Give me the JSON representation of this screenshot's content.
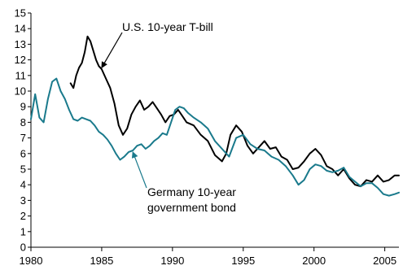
{
  "chart_data": {
    "type": "line",
    "title": "",
    "xlabel": "",
    "ylabel": "",
    "xlim": [
      1980,
      2006
    ],
    "ylim": [
      0,
      15
    ],
    "x_ticks": [
      1980,
      1985,
      1990,
      1995,
      2000,
      2005
    ],
    "x_tick_labels": [
      "1980",
      "1985",
      "1990",
      "1995",
      "2000",
      "2005"
    ],
    "y_ticks": [
      0,
      1,
      2,
      3,
      4,
      5,
      6,
      7,
      8,
      9,
      10,
      11,
      12,
      13,
      14,
      15
    ],
    "y_tick_labels": [
      "0",
      "1",
      "2",
      "3",
      "4",
      "5",
      "6",
      "7",
      "8",
      "9",
      "10",
      "11",
      "12",
      "13",
      "14",
      "15"
    ],
    "grid": false,
    "colors": {
      "us": "#000000",
      "germany": "#1a7a8c"
    },
    "series": [
      {
        "key": "us",
        "x": [
          1982.8,
          1983.0,
          1983.2,
          1983.4,
          1983.6,
          1983.8,
          1984.0,
          1984.2,
          1984.4,
          1984.6,
          1984.8,
          1985.0,
          1985.3,
          1985.6,
          1985.9,
          1986.2,
          1986.5,
          1986.8,
          1987.1,
          1987.4,
          1987.7,
          1988.0,
          1988.3,
          1988.6,
          1988.9,
          1989.2,
          1989.5,
          1989.8,
          1990.1,
          1990.4,
          1990.7,
          1991.0,
          1991.5,
          1992.0,
          1992.5,
          1993.0,
          1993.5,
          1993.8,
          1994.1,
          1994.5,
          1994.9,
          1995.3,
          1995.7,
          1996.1,
          1996.5,
          1996.9,
          1997.3,
          1997.7,
          1998.1,
          1998.5,
          1998.9,
          1999.3,
          1999.7,
          2000.1,
          2000.5,
          2000.9,
          2001.3,
          2001.7,
          2002.1,
          2002.5,
          2002.9,
          2003.3,
          2003.7,
          2004.1,
          2004.5,
          2004.9,
          2005.3,
          2005.7,
          2006.0
        ],
        "y": [
          10.5,
          10.2,
          11.0,
          11.5,
          11.8,
          12.5,
          13.5,
          13.2,
          12.6,
          12.0,
          11.6,
          11.4,
          10.8,
          10.2,
          9.2,
          7.8,
          7.2,
          7.6,
          8.5,
          9.0,
          9.4,
          8.8,
          9.0,
          9.3,
          8.9,
          8.5,
          8.0,
          8.4,
          8.5,
          8.8,
          8.4,
          8.0,
          7.8,
          7.2,
          6.8,
          5.9,
          5.5,
          6.0,
          7.2,
          7.8,
          7.4,
          6.5,
          6.0,
          6.4,
          6.8,
          6.3,
          6.4,
          5.8,
          5.6,
          5.0,
          5.1,
          5.5,
          6.0,
          6.3,
          5.9,
          5.2,
          5.0,
          4.6,
          5.0,
          4.4,
          4.0,
          3.9,
          4.3,
          4.2,
          4.6,
          4.2,
          4.3,
          4.6,
          4.6
        ]
      },
      {
        "key": "germany",
        "x": [
          1980.0,
          1980.3,
          1980.6,
          1980.9,
          1981.2,
          1981.5,
          1981.8,
          1982.1,
          1982.4,
          1982.7,
          1983.0,
          1983.3,
          1983.6,
          1983.9,
          1984.2,
          1984.5,
          1984.8,
          1985.1,
          1985.4,
          1985.7,
          1986.0,
          1986.3,
          1986.6,
          1986.9,
          1987.2,
          1987.5,
          1987.8,
          1988.1,
          1988.4,
          1988.7,
          1989.0,
          1989.3,
          1989.6,
          1989.9,
          1990.2,
          1990.5,
          1990.8,
          1991.1,
          1991.5,
          1992.0,
          1992.5,
          1993.0,
          1993.5,
          1994.0,
          1994.5,
          1995.0,
          1995.5,
          1996.0,
          1996.5,
          1997.0,
          1997.5,
          1998.0,
          1998.5,
          1998.9,
          1999.3,
          1999.7,
          2000.1,
          2000.5,
          2000.9,
          2001.3,
          2001.7,
          2002.1,
          2002.5,
          2002.9,
          2003.3,
          2003.7,
          2004.1,
          2004.5,
          2004.9,
          2005.3,
          2005.7,
          2006.0
        ],
        "y": [
          8.2,
          9.8,
          8.3,
          8.0,
          9.5,
          10.6,
          10.8,
          10.0,
          9.5,
          8.8,
          8.2,
          8.1,
          8.3,
          8.2,
          8.1,
          7.8,
          7.4,
          7.2,
          6.9,
          6.5,
          6.0,
          5.6,
          5.8,
          6.1,
          6.2,
          6.5,
          6.6,
          6.3,
          6.5,
          6.8,
          7.0,
          7.3,
          7.2,
          8.0,
          8.8,
          9.0,
          8.9,
          8.6,
          8.3,
          8.0,
          7.6,
          6.8,
          6.3,
          5.8,
          7.0,
          7.2,
          6.6,
          6.3,
          6.2,
          5.8,
          5.6,
          5.2,
          4.6,
          4.0,
          4.3,
          5.0,
          5.3,
          5.2,
          4.9,
          4.8,
          4.9,
          5.1,
          4.5,
          4.2,
          3.9,
          4.1,
          4.1,
          3.8,
          3.4,
          3.3,
          3.4,
          3.5
        ]
      }
    ],
    "annotations": [
      {
        "key": "us_label",
        "text": "U.S. 10-year T-bill",
        "target_x": 1985.0,
        "target_y": 11.5
      },
      {
        "key": "germany_label_line1",
        "text": "Germany 10-year",
        "target_x": 1987.2,
        "target_y": 6.2
      },
      {
        "key": "germany_label_line2",
        "text": "government bond"
      }
    ]
  }
}
